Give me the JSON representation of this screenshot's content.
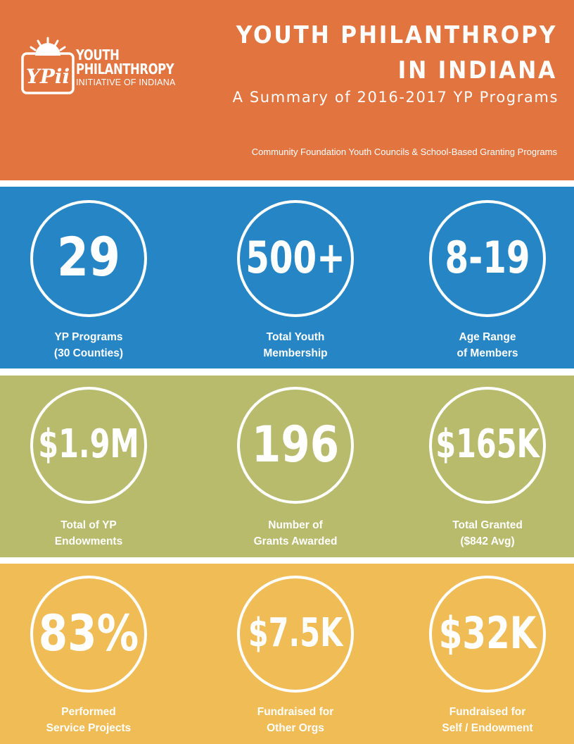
{
  "header": {
    "logo": {
      "mark": "YPii",
      "line1": "YOUTH",
      "line2": "PHILANTHROPY",
      "line3": "INITIATIVE OF INDIANA"
    },
    "title_line1": "YOUTH PHILANTHROPY",
    "title_line2": "IN INDIANA",
    "subtitle": "A Summary of 2016-2017 YP Programs",
    "tagline": "Community Foundation Youth Councils & School-Based Granting Programs"
  },
  "rows": [
    {
      "color": "#2686c5",
      "stats": [
        {
          "value": "29",
          "label": [
            "YP Programs",
            "(30 Counties)"
          ]
        },
        {
          "value": "500+",
          "label": [
            "Total Youth",
            "Membership"
          ]
        },
        {
          "value": "8-19",
          "label": [
            "Age Range",
            "of Members"
          ]
        }
      ]
    },
    {
      "color": "#b8ba6c",
      "stats": [
        {
          "value": "$1.9M",
          "label": [
            "Total of YP",
            "Endowments"
          ]
        },
        {
          "value": "196",
          "label": [
            "Number of",
            "Grants Awarded"
          ]
        },
        {
          "value": "$165K",
          "label": [
            "Total Granted",
            "($842 Avg)"
          ]
        }
      ]
    },
    {
      "color": "#f0bc55",
      "stats": [
        {
          "value": "83%",
          "label": [
            "Performed",
            "Service Projects"
          ]
        },
        {
          "value": "$7.5K",
          "label": [
            "Fundraised for",
            "Other Orgs"
          ]
        },
        {
          "value": "$32K",
          "label": [
            "Fundraised for",
            "Self / Endowment"
          ]
        }
      ]
    }
  ],
  "colors": {
    "header_bg": "#e27440",
    "text": "#ffffff"
  }
}
